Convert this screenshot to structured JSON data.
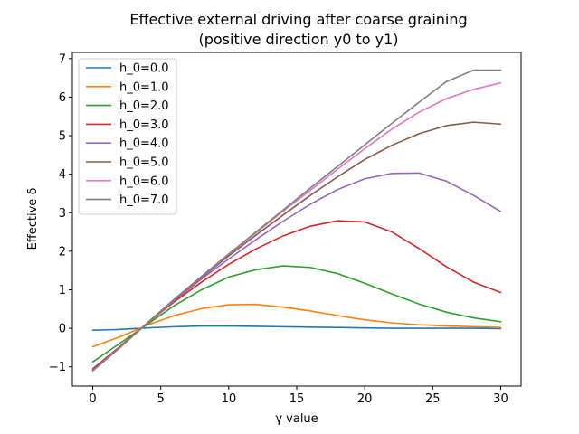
{
  "chart_data": {
    "type": "line",
    "title": [
      "Effective external driving after coarse graining",
      "(positive direction y0 to y1)"
    ],
    "xlabel": "γ value",
    "ylabel": "Effective δ",
    "xlim": [
      -1.5,
      31.5
    ],
    "ylim": [
      -1.5,
      7.16
    ],
    "xticks": [
      0,
      5,
      10,
      15,
      20,
      25,
      30
    ],
    "yticks": [
      -1,
      0,
      1,
      2,
      3,
      4,
      5,
      6,
      7
    ],
    "ytick_labels": [
      "−1",
      "0",
      "1",
      "2",
      "3",
      "4",
      "5",
      "6",
      "7"
    ],
    "grid": false,
    "legend_position": "upper-left",
    "x": [
      0,
      2,
      4,
      6,
      8,
      10,
      12,
      14,
      16,
      18,
      20,
      22,
      24,
      26,
      28,
      30
    ],
    "series": [
      {
        "name": "h_0=0.0",
        "color": "#1f77b4",
        "values": [
          -0.05,
          -0.03,
          0.01,
          0.04,
          0.06,
          0.06,
          0.05,
          0.04,
          0.03,
          0.02,
          0.01,
          0.0,
          0.0,
          0.0,
          0.0,
          -0.01
        ]
      },
      {
        "name": "h_0=1.0",
        "color": "#ff7f0e",
        "values": [
          -0.48,
          -0.22,
          0.08,
          0.33,
          0.51,
          0.61,
          0.62,
          0.55,
          0.45,
          0.33,
          0.22,
          0.14,
          0.09,
          0.06,
          0.04,
          0.02
        ]
      },
      {
        "name": "h_0=2.0",
        "color": "#2ca02c",
        "values": [
          -0.87,
          -0.39,
          0.1,
          0.59,
          1.0,
          1.33,
          1.52,
          1.62,
          1.58,
          1.42,
          1.17,
          0.89,
          0.63,
          0.42,
          0.27,
          0.17
        ]
      },
      {
        "name": "h_0=3.0",
        "color": "#d62728",
        "values": [
          -1.05,
          -0.47,
          0.13,
          0.69,
          1.2,
          1.66,
          2.06,
          2.4,
          2.65,
          2.79,
          2.76,
          2.5,
          2.07,
          1.6,
          1.2,
          0.93
        ]
      },
      {
        "name": "h_0=4.0",
        "color": "#9467bd",
        "values": [
          -1.08,
          -0.49,
          0.13,
          0.72,
          1.28,
          1.8,
          2.3,
          2.78,
          3.22,
          3.6,
          3.88,
          4.02,
          4.03,
          3.82,
          3.45,
          3.03
        ]
      },
      {
        "name": "h_0=5.0",
        "color": "#8c564b",
        "values": [
          -1.09,
          -0.5,
          0.13,
          0.74,
          1.32,
          1.88,
          2.42,
          2.94,
          3.45,
          3.93,
          4.38,
          4.75,
          5.05,
          5.26,
          5.35,
          5.3
        ]
      },
      {
        "name": "h_0=6.0",
        "color": "#e377c2",
        "values": [
          -1.1,
          -0.5,
          0.13,
          0.75,
          1.34,
          1.92,
          2.48,
          3.04,
          3.58,
          4.13,
          4.66,
          5.17,
          5.61,
          5.96,
          6.2,
          6.37
        ]
      },
      {
        "name": "h_0=7.0",
        "color": "#7f7f7f",
        "values": [
          -1.1,
          -0.5,
          0.14,
          0.76,
          1.35,
          1.93,
          2.5,
          3.07,
          3.64,
          4.2,
          4.76,
          5.32,
          5.87,
          6.4,
          6.7,
          6.7
        ]
      }
    ]
  }
}
